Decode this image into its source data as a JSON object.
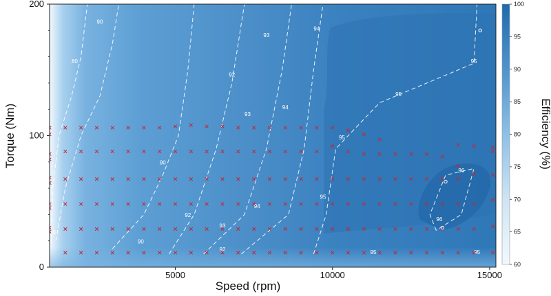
{
  "chart_data": {
    "type": "heatmap",
    "xlabel": "Speed (rpm)",
    "ylabel": "Torque (Nm)",
    "colorbar_label": "Efficiency (%)",
    "xlim": [
      1000,
      15200
    ],
    "ylim": [
      0,
      200
    ],
    "x_ticks": [
      5000,
      10000,
      15000
    ],
    "y_ticks": [
      0,
      100,
      200
    ],
    "colorbar_range": [
      60,
      100
    ],
    "colorbar_ticks": [
      60,
      65,
      70,
      75,
      80,
      85,
      90,
      95,
      100
    ],
    "grid": false,
    "colors": {
      "low": "#f2f8fd",
      "mid": "#5fa2d6",
      "high": "#1f6aae",
      "contour": "#ffffff",
      "marker": "#c0293b"
    },
    "contours": [
      {
        "level": 80,
        "label": "80",
        "points": [
          [
            1050,
            18
          ],
          [
            1100,
            60
          ],
          [
            1300,
            100
          ],
          [
            1700,
            130
          ],
          [
            2000,
            160
          ],
          [
            2200,
            200
          ]
        ]
      },
      {
        "level": 90,
        "label": "90",
        "points": [
          [
            1200,
            20
          ],
          [
            1500,
            60
          ],
          [
            2000,
            100
          ],
          [
            2600,
            130
          ],
          [
            3000,
            170
          ],
          [
            3200,
            200
          ]
        ]
      },
      {
        "level": 90,
        "label": "90",
        "points": [
          [
            3000,
            14
          ],
          [
            4000,
            40
          ],
          [
            4600,
            70
          ],
          [
            5100,
            100
          ],
          [
            5400,
            150
          ],
          [
            5600,
            200
          ]
        ]
      },
      {
        "level": 92,
        "label": "92",
        "points": [
          [
            4800,
            10
          ],
          [
            5600,
            40
          ],
          [
            6300,
            90
          ],
          [
            6800,
            140
          ],
          [
            7200,
            200
          ]
        ]
      },
      {
        "level": 93,
        "label": "93",
        "points": [
          [
            5900,
            10
          ],
          [
            7200,
            40
          ],
          [
            7900,
            90
          ],
          [
            8400,
            150
          ],
          [
            8700,
            200
          ]
        ]
      },
      {
        "level": 94,
        "label": "94",
        "points": [
          [
            7100,
            10
          ],
          [
            8600,
            40
          ],
          [
            9100,
            90
          ],
          [
            9400,
            150
          ],
          [
            9700,
            200
          ]
        ]
      },
      {
        "level": 95,
        "label": "95",
        "points": [
          [
            9400,
            10
          ],
          [
            9800,
            40
          ],
          [
            10100,
            90
          ],
          [
            11500,
            125
          ],
          [
            13000,
            140
          ],
          [
            14500,
            155
          ],
          [
            14600,
            200
          ]
        ]
      },
      {
        "level": 96,
        "label": "96",
        "points": [
          [
            13300,
            28
          ],
          [
            13100,
            40
          ],
          [
            13600,
            70
          ],
          [
            14500,
            75
          ],
          [
            14100,
            40
          ],
          [
            13300,
            28
          ]
        ]
      }
    ],
    "contour_labels": [
      {
        "x": 1800,
        "y": 155,
        "text": "80"
      },
      {
        "x": 2600,
        "y": 185,
        "text": "90"
      },
      {
        "x": 1100,
        "y": 25,
        "text": "90"
      },
      {
        "x": 4600,
        "y": 78,
        "text": "90"
      },
      {
        "x": 3900,
        "y": 18,
        "text": "90"
      },
      {
        "x": 6800,
        "y": 145,
        "text": "92"
      },
      {
        "x": 5400,
        "y": 38,
        "text": "92"
      },
      {
        "x": 6500,
        "y": 12,
        "text": "92"
      },
      {
        "x": 7900,
        "y": 175,
        "text": "93"
      },
      {
        "x": 7300,
        "y": 115,
        "text": "93"
      },
      {
        "x": 6500,
        "y": 30,
        "text": "93"
      },
      {
        "x": 9500,
        "y": 180,
        "text": "94"
      },
      {
        "x": 8500,
        "y": 120,
        "text": "94"
      },
      {
        "x": 7600,
        "y": 45,
        "text": "94"
      },
      {
        "x": 10300,
        "y": 97,
        "text": "95"
      },
      {
        "x": 12100,
        "y": 130,
        "text": "95"
      },
      {
        "x": 14500,
        "y": 155,
        "text": "95"
      },
      {
        "x": 9700,
        "y": 52,
        "text": "95"
      },
      {
        "x": 11300,
        "y": 10,
        "text": "95"
      },
      {
        "x": 14600,
        "y": 10,
        "text": "95"
      },
      {
        "x": 13400,
        "y": 35,
        "text": "96"
      },
      {
        "x": 14100,
        "y": 72,
        "text": "96"
      }
    ],
    "markers": [
      [
        1000,
        106
      ],
      [
        1000,
        101
      ],
      [
        1000,
        86
      ],
      [
        1000,
        82
      ],
      [
        1000,
        68
      ],
      [
        1000,
        64
      ],
      [
        1000,
        48
      ],
      [
        1000,
        45
      ],
      [
        1000,
        30
      ],
      [
        1000,
        27
      ],
      [
        1500,
        106
      ],
      [
        1500,
        88
      ],
      [
        1500,
        67
      ],
      [
        1500,
        48
      ],
      [
        1500,
        29
      ],
      [
        1500,
        11
      ],
      [
        2000,
        106
      ],
      [
        2000,
        88
      ],
      [
        2000,
        67
      ],
      [
        2000,
        48
      ],
      [
        2000,
        29
      ],
      [
        2000,
        11
      ],
      [
        2500,
        106
      ],
      [
        2500,
        88
      ],
      [
        2500,
        67
      ],
      [
        2500,
        48
      ],
      [
        2500,
        29
      ],
      [
        2500,
        11
      ],
      [
        3000,
        106
      ],
      [
        3000,
        88
      ],
      [
        3000,
        67
      ],
      [
        3000,
        48
      ],
      [
        3000,
        29
      ],
      [
        3000,
        11
      ],
      [
        3500,
        106
      ],
      [
        3500,
        88
      ],
      [
        3500,
        67
      ],
      [
        3500,
        48
      ],
      [
        3500,
        29
      ],
      [
        3500,
        11
      ],
      [
        4000,
        106
      ],
      [
        4000,
        88
      ],
      [
        4000,
        67
      ],
      [
        4000,
        48
      ],
      [
        4000,
        29
      ],
      [
        4000,
        11
      ],
      [
        4500,
        106
      ],
      [
        4500,
        88
      ],
      [
        4500,
        67
      ],
      [
        4500,
        48
      ],
      [
        4500,
        29
      ],
      [
        4500,
        11
      ],
      [
        5000,
        107
      ],
      [
        5000,
        88
      ],
      [
        5000,
        67
      ],
      [
        5000,
        48
      ],
      [
        5000,
        29
      ],
      [
        5000,
        11
      ],
      [
        5500,
        108
      ],
      [
        5500,
        88
      ],
      [
        5500,
        67
      ],
      [
        5500,
        48
      ],
      [
        5500,
        29
      ],
      [
        5500,
        11
      ],
      [
        6000,
        107
      ],
      [
        6000,
        88
      ],
      [
        6000,
        67
      ],
      [
        6000,
        48
      ],
      [
        6000,
        29
      ],
      [
        6000,
        11
      ],
      [
        6500,
        107
      ],
      [
        6500,
        88
      ],
      [
        6500,
        67
      ],
      [
        6500,
        48
      ],
      [
        6500,
        29
      ],
      [
        6500,
        11
      ],
      [
        7000,
        106
      ],
      [
        7000,
        88
      ],
      [
        7000,
        67
      ],
      [
        7000,
        48
      ],
      [
        7000,
        29
      ],
      [
        7000,
        11
      ],
      [
        7500,
        106
      ],
      [
        7500,
        88
      ],
      [
        7500,
        67
      ],
      [
        7500,
        48
      ],
      [
        7500,
        29
      ],
      [
        7500,
        11
      ],
      [
        8000,
        106
      ],
      [
        8000,
        88
      ],
      [
        8000,
        67
      ],
      [
        8000,
        48
      ],
      [
        8000,
        29
      ],
      [
        8000,
        11
      ],
      [
        8500,
        106
      ],
      [
        8500,
        88
      ],
      [
        8500,
        67
      ],
      [
        8500,
        48
      ],
      [
        8500,
        29
      ],
      [
        8500,
        11
      ],
      [
        9000,
        106
      ],
      [
        9000,
        88
      ],
      [
        9000,
        67
      ],
      [
        9000,
        48
      ],
      [
        9000,
        29
      ],
      [
        9000,
        11
      ],
      [
        9500,
        106
      ],
      [
        9500,
        88
      ],
      [
        9500,
        67
      ],
      [
        9500,
        48
      ],
      [
        9500,
        29
      ],
      [
        9500,
        11
      ],
      [
        10000,
        106
      ],
      [
        10000,
        92
      ],
      [
        10000,
        67
      ],
      [
        10000,
        48
      ],
      [
        10000,
        29
      ],
      [
        10000,
        11
      ],
      [
        10500,
        104
      ],
      [
        10500,
        88
      ],
      [
        10500,
        67
      ],
      [
        10500,
        48
      ],
      [
        10500,
        29
      ],
      [
        10500,
        11
      ],
      [
        11000,
        101
      ],
      [
        11000,
        86
      ],
      [
        11000,
        67
      ],
      [
        11000,
        48
      ],
      [
        11000,
        29
      ],
      [
        11000,
        11
      ],
      [
        11500,
        97
      ],
      [
        11500,
        86
      ],
      [
        11500,
        67
      ],
      [
        11500,
        48
      ],
      [
        11500,
        29
      ],
      [
        11500,
        11
      ],
      [
        12000,
        86
      ],
      [
        12000,
        67
      ],
      [
        12000,
        48
      ],
      [
        12000,
        29
      ],
      [
        12000,
        11
      ],
      [
        12500,
        86
      ],
      [
        12500,
        67
      ],
      [
        12500,
        48
      ],
      [
        12500,
        29
      ],
      [
        12500,
        11
      ],
      [
        13000,
        86
      ],
      [
        13000,
        67
      ],
      [
        13000,
        48
      ],
      [
        13000,
        29
      ],
      [
        13000,
        11
      ],
      [
        13500,
        84
      ],
      [
        13500,
        67
      ],
      [
        13500,
        48
      ],
      [
        13500,
        29
      ],
      [
        13500,
        11
      ],
      [
        14000,
        93
      ],
      [
        14000,
        77
      ],
      [
        14000,
        67
      ],
      [
        14000,
        48
      ],
      [
        14000,
        29
      ],
      [
        14000,
        11
      ],
      [
        14500,
        92
      ],
      [
        14500,
        71
      ],
      [
        14500,
        48
      ],
      [
        14500,
        29
      ],
      [
        14500,
        11
      ],
      [
        15100,
        91
      ],
      [
        15100,
        88
      ],
      [
        15100,
        70
      ],
      [
        15100,
        51
      ],
      [
        15100,
        31
      ],
      [
        15100,
        11
      ]
    ],
    "circles": [
      [
        14700,
        180
      ],
      [
        13500,
        30
      ],
      [
        13600,
        65
      ]
    ]
  }
}
